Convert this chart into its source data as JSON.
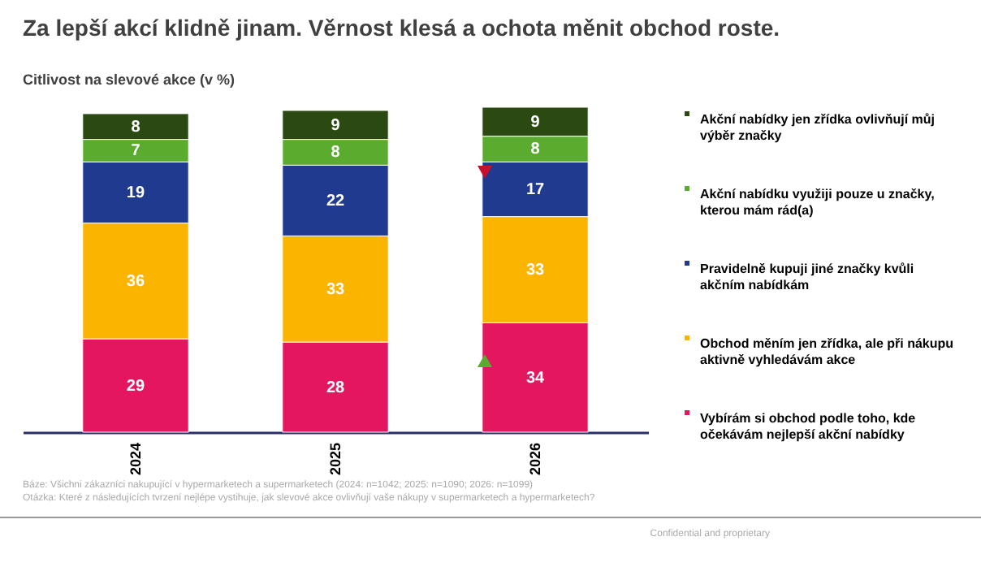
{
  "chart_data": {
    "type": "bar",
    "title": "Za lepší akcí klidně jinam. Věrnost klesá a ochota měnit obchod roste.",
    "subtitle": "Citlivost na slevové akce (v %)",
    "categories": [
      "2024",
      "2025",
      "2026"
    ],
    "stacked": true,
    "data_labels": true,
    "legend": "right",
    "series": [
      {
        "name": "Vybírám si obchod podle toho, kde očekávám nejlepší akční nabídky",
        "color": "#e3165f",
        "values": [
          29,
          28,
          34
        ]
      },
      {
        "name": "Obchod měním jen zřídka, ale při nákupu aktivně vyhledávám akce",
        "color": "#fbb400",
        "values": [
          36,
          33,
          33
        ]
      },
      {
        "name": "Pravidelně kupuji jiné značky kvůli akčním nabídkám",
        "color": "#1f3a8f",
        "values": [
          19,
          22,
          17
        ]
      },
      {
        "name": "Akční nabídku využiji pouze u značky, kterou mám rád(a)",
        "color": "#5bab2f",
        "values": [
          7,
          8,
          8
        ]
      },
      {
        "name": "Akční nabídky jen zřídka ovlivňují můj výběr značky",
        "color": "#2b4a12",
        "values": [
          8,
          9,
          9
        ]
      }
    ],
    "annotations": [
      "Báze: Všichni zákazníci nakupující v hypermarketech a supermarketech (2024: n=1042; 2025: n=1090; 2026: n=1099)",
      "Otázka: Které z následujících tvrzení nejlépe vystihuje, jak slevové akce ovlivňují vaše nákupy v supermarketech a hypermarketech?",
      "Confidential and proprietary"
    ]
  }
}
